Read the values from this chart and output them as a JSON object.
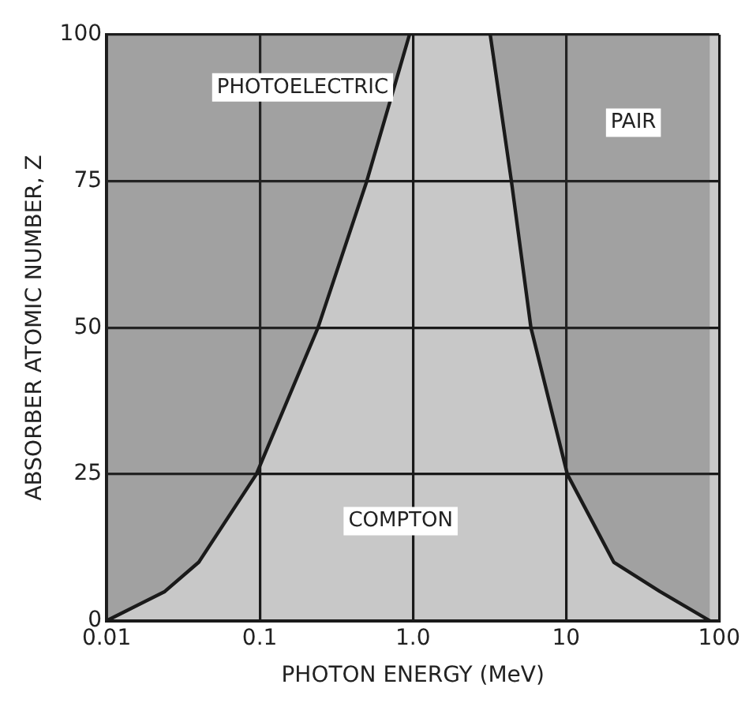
{
  "chart_data": {
    "type": "line",
    "xlabel": "PHOTON ENERGY (MeV)",
    "ylabel": "ABSORBER ATOMIC NUMBER, Z",
    "log": "x",
    "xlim": [
      0.01,
      100
    ],
    "ylim": [
      0,
      100
    ],
    "xticks": [
      {
        "value": 0.01,
        "label": "0.01"
      },
      {
        "value": 0.1,
        "label": "0.1"
      },
      {
        "value": 1,
        "label": "1.0"
      },
      {
        "value": 10,
        "label": "10"
      },
      {
        "value": 100,
        "label": "100"
      }
    ],
    "yticks": [
      0,
      25,
      50,
      75,
      100
    ],
    "grid": true,
    "legend": false,
    "marker": "none",
    "line_style": "solid",
    "series": [
      {
        "color": "#1a1a1a",
        "x": [
          0.01,
          0.024,
          0.04,
          0.095,
          0.24,
          0.5,
          0.95
        ],
        "values": [
          0,
          5,
          10,
          25,
          50,
          75,
          100
        ]
      },
      {
        "color": "#1a1a1a",
        "x": [
          3.2,
          4.4,
          5.9,
          10.2,
          20.5,
          41,
          87
        ],
        "values": [
          100,
          75,
          50,
          25,
          10,
          5,
          0
        ]
      }
    ],
    "annotations": [
      "PHOTOELECTRIC",
      "PAIR",
      "COMPTON"
    ]
  }
}
